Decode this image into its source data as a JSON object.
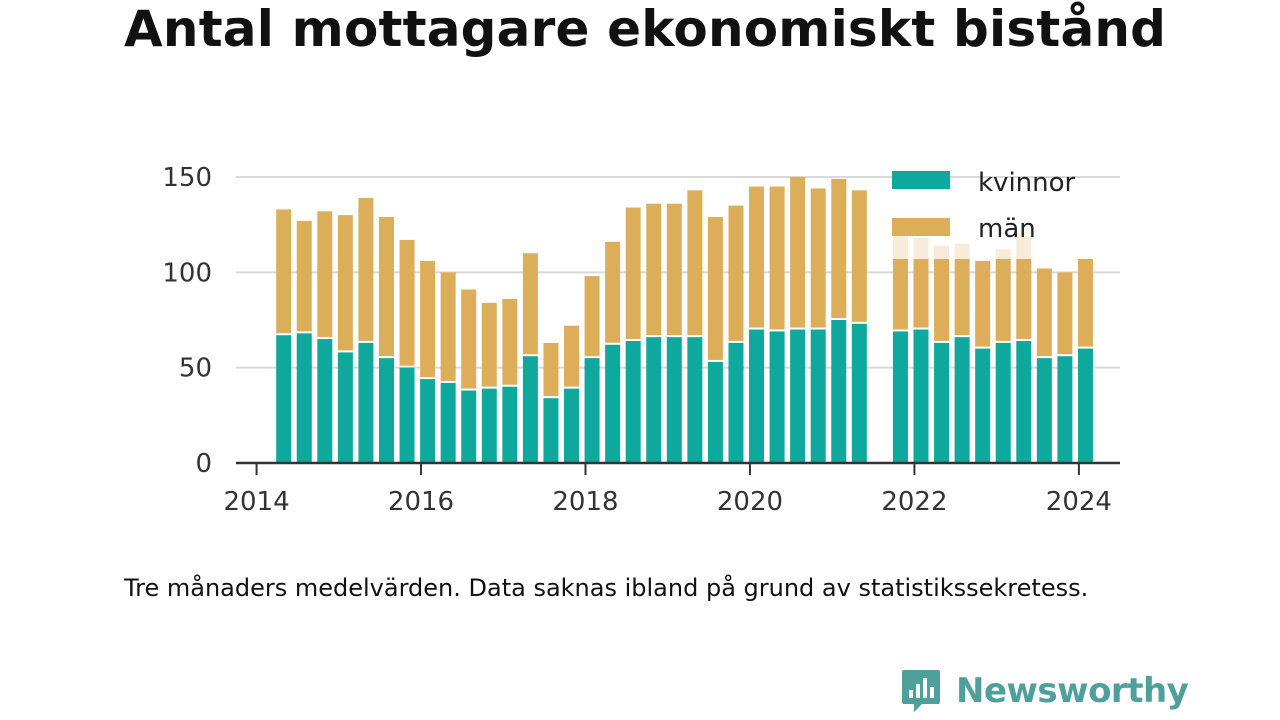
{
  "title": "Antal mottagare ekonomiskt bistånd",
  "note": "Tre månaders medelvärden. Data saknas ibland på grund av statistikssekretess.",
  "brand": {
    "name": "Newsworthy",
    "icon": "newsworthy-logo-icon"
  },
  "colors": {
    "kvinnor": "#0ea89c",
    "man": "#dcae5a",
    "man_faint": "#f6ecd9",
    "grid": "#d9d9d9",
    "axis": "#333333"
  },
  "chart_data": {
    "type": "bar",
    "stacked": true,
    "ylim": [
      0,
      150
    ],
    "yticks": [
      "0",
      "50",
      "100",
      "150"
    ],
    "ytick_values": [
      0,
      50,
      100,
      150
    ],
    "xticks": [
      "2014",
      "2016",
      "2018",
      "2020",
      "2022",
      "2024"
    ],
    "xtick_values": [
      2014,
      2016,
      2018,
      2020,
      2022,
      2024
    ],
    "xlim": [
      2013.75,
      2024.5
    ],
    "grid": true,
    "legend": {
      "placement": "top-right",
      "items": [
        "kvinnor",
        "män"
      ]
    },
    "x": [
      2014.33,
      2014.58,
      2014.83,
      2015.08,
      2015.33,
      2015.58,
      2015.83,
      2016.08,
      2016.33,
      2016.58,
      2016.83,
      2017.08,
      2017.33,
      2017.58,
      2017.83,
      2018.08,
      2018.33,
      2018.58,
      2018.83,
      2019.08,
      2019.33,
      2019.58,
      2019.83,
      2020.08,
      2020.33,
      2020.58,
      2020.83,
      2021.08,
      2021.33,
      2021.58,
      2021.83,
      2022.08,
      2022.33,
      2022.58,
      2022.83,
      2023.08,
      2023.33,
      2023.58,
      2023.83,
      2024.08
    ],
    "series": [
      {
        "name": "kvinnor",
        "values": [
          67,
          68,
          65,
          58,
          63,
          55,
          50,
          44,
          42,
          38,
          39,
          40,
          56,
          34,
          39,
          55,
          62,
          64,
          66,
          66,
          66,
          53,
          63,
          70,
          69,
          70,
          70,
          75,
          73,
          null,
          69,
          70,
          63,
          66,
          60,
          63,
          64,
          55,
          56,
          60
        ]
      },
      {
        "name": "män",
        "values": [
          66,
          59,
          67,
          72,
          76,
          74,
          67,
          62,
          58,
          53,
          45,
          46,
          54,
          29,
          33,
          43,
          54,
          70,
          70,
          70,
          77,
          76,
          72,
          75,
          76,
          80,
          74,
          74,
          70,
          null,
          38,
          37,
          44,
          41,
          46,
          44,
          43,
          47,
          44,
          47
        ]
      },
      {
        "name": "",
        "faint": true,
        "values": [
          0,
          0,
          0,
          0,
          0,
          0,
          0,
          0,
          0,
          0,
          0,
          0,
          0,
          0,
          0,
          0,
          0,
          0,
          0,
          0,
          0,
          0,
          0,
          0,
          0,
          0,
          0,
          0,
          0,
          null,
          12,
          11,
          7,
          8,
          0,
          5,
          12,
          0,
          0,
          0
        ]
      }
    ]
  }
}
